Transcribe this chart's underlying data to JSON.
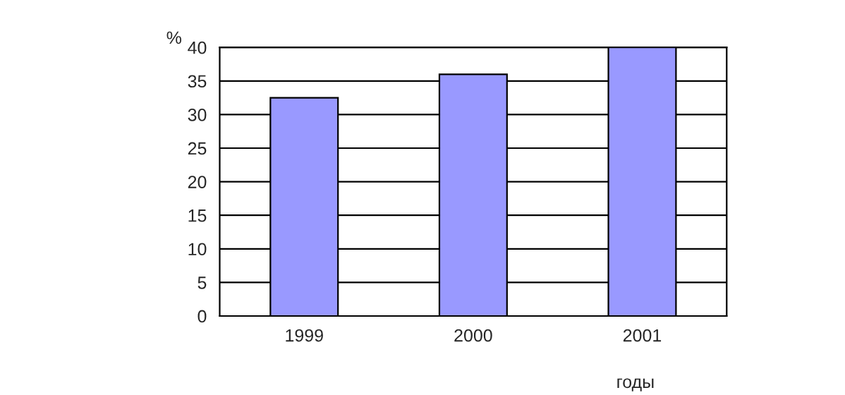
{
  "chart_data": {
    "type": "bar",
    "categories": [
      "1999",
      "2000",
      "2001"
    ],
    "values": [
      32.5,
      36,
      40
    ],
    "color": "#9999ff",
    "ylim": [
      0,
      40
    ],
    "yticks": [
      0,
      5,
      10,
      15,
      20,
      25,
      30,
      35,
      40
    ],
    "grid": "y",
    "ylabel": "%",
    "xlabel": "годы"
  }
}
